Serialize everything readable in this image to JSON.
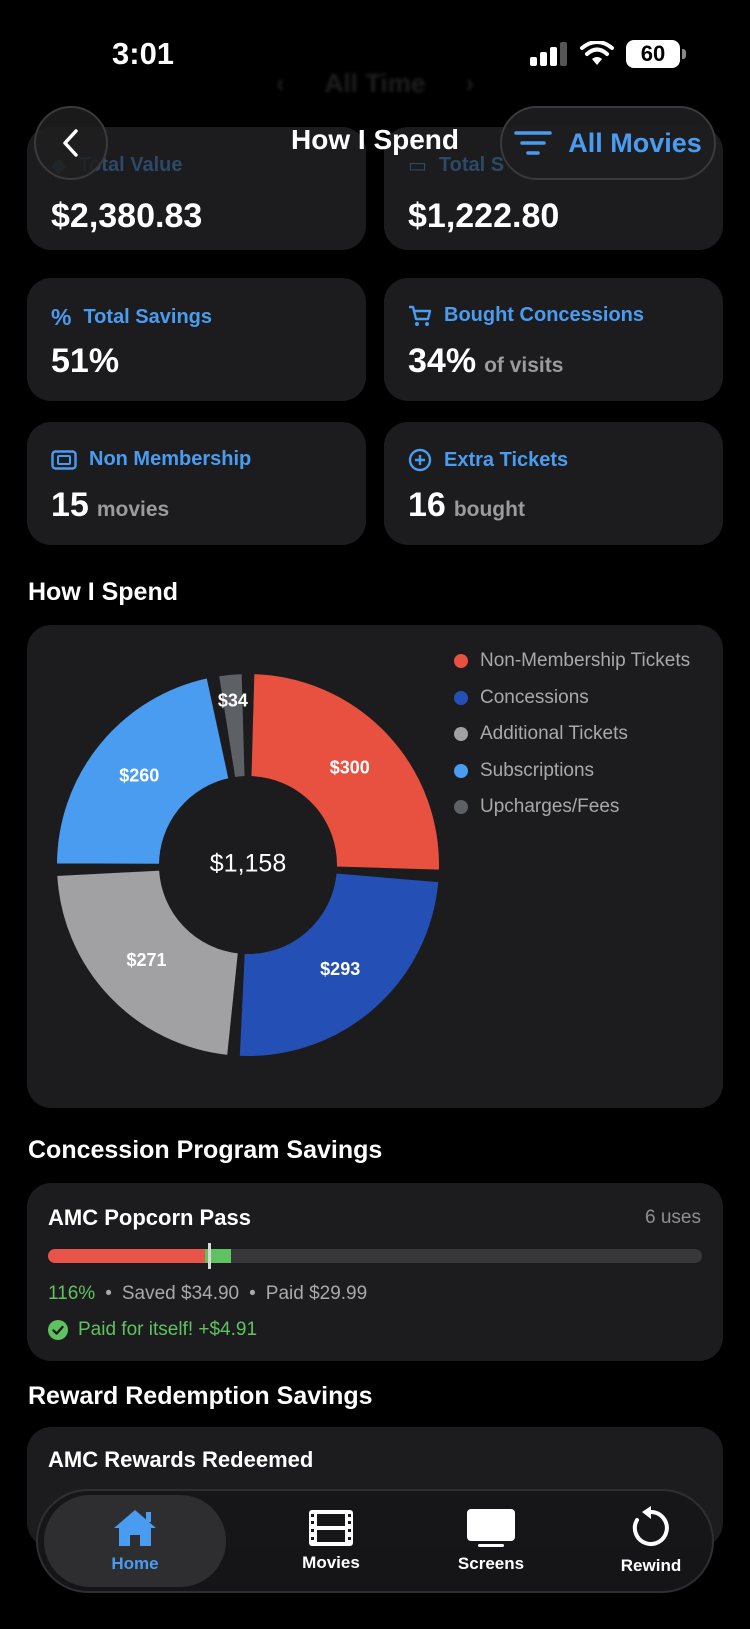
{
  "status": {
    "time": "3:01",
    "battery": "60"
  },
  "ghost_header": {
    "label": "All Time"
  },
  "nav": {
    "title": "How I Spend",
    "filter_label": "All Movies"
  },
  "stats": {
    "total_value": {
      "label": "Total Value",
      "value": "$2,380.83"
    },
    "total_spent": {
      "label": "Total S",
      "value": "$1,222.80"
    },
    "total_savings": {
      "label": "Total Savings",
      "value": "51%"
    },
    "bought_concessions": {
      "label": "Bought Concessions",
      "value": "34%",
      "suffix": "of visits"
    },
    "non_membership": {
      "label": "Non Membership",
      "value": "15",
      "suffix": "movies"
    },
    "extra_tickets": {
      "label": "Extra Tickets",
      "value": "16",
      "suffix": "bought"
    }
  },
  "spend_section": {
    "title": "How I Spend"
  },
  "chart_data": {
    "type": "pie",
    "title": "",
    "center_label": "$1,158",
    "slices": [
      {
        "name": "Non-Membership Tickets",
        "value": 300,
        "label": "$300",
        "color": "#e8503f"
      },
      {
        "name": "Concessions",
        "value": 293,
        "label": "$293",
        "color": "#2450b5"
      },
      {
        "name": "Additional Tickets",
        "value": 271,
        "label": "$271",
        "color": "#a1a1a3"
      },
      {
        "name": "Subscriptions",
        "value": 260,
        "label": "$260",
        "color": "#4a9cf0"
      },
      {
        "name": "Upcharges/Fees",
        "value": 34,
        "label": "$34",
        "color": "#5d6166"
      }
    ],
    "legend_position": "top-right"
  },
  "concession_section": {
    "title": "Concession Program Savings",
    "card": {
      "name": "AMC Popcorn Pass",
      "uses": "6 uses",
      "percent": "116%",
      "saved": "Saved $34.90",
      "paid": "Paid $29.99",
      "note": "Paid for itself! +$4.91",
      "progress_paid_fraction": 0.24,
      "progress_saved_fraction": 0.28
    }
  },
  "reward_section": {
    "title": "Reward Redemption Savings",
    "card": {
      "name": "AMC Rewards Redeemed"
    }
  },
  "tabs": [
    {
      "label": "Home",
      "icon": "house-icon",
      "active": true
    },
    {
      "label": "Movies",
      "icon": "film-icon",
      "active": false
    },
    {
      "label": "Screens",
      "icon": "screen-icon",
      "active": false
    },
    {
      "label": "Rewind",
      "icon": "rewind-icon",
      "active": false
    }
  ],
  "colors": {
    "accent": "#4a9cf0",
    "success": "#5ec35e",
    "card": "#1c1c1e"
  }
}
